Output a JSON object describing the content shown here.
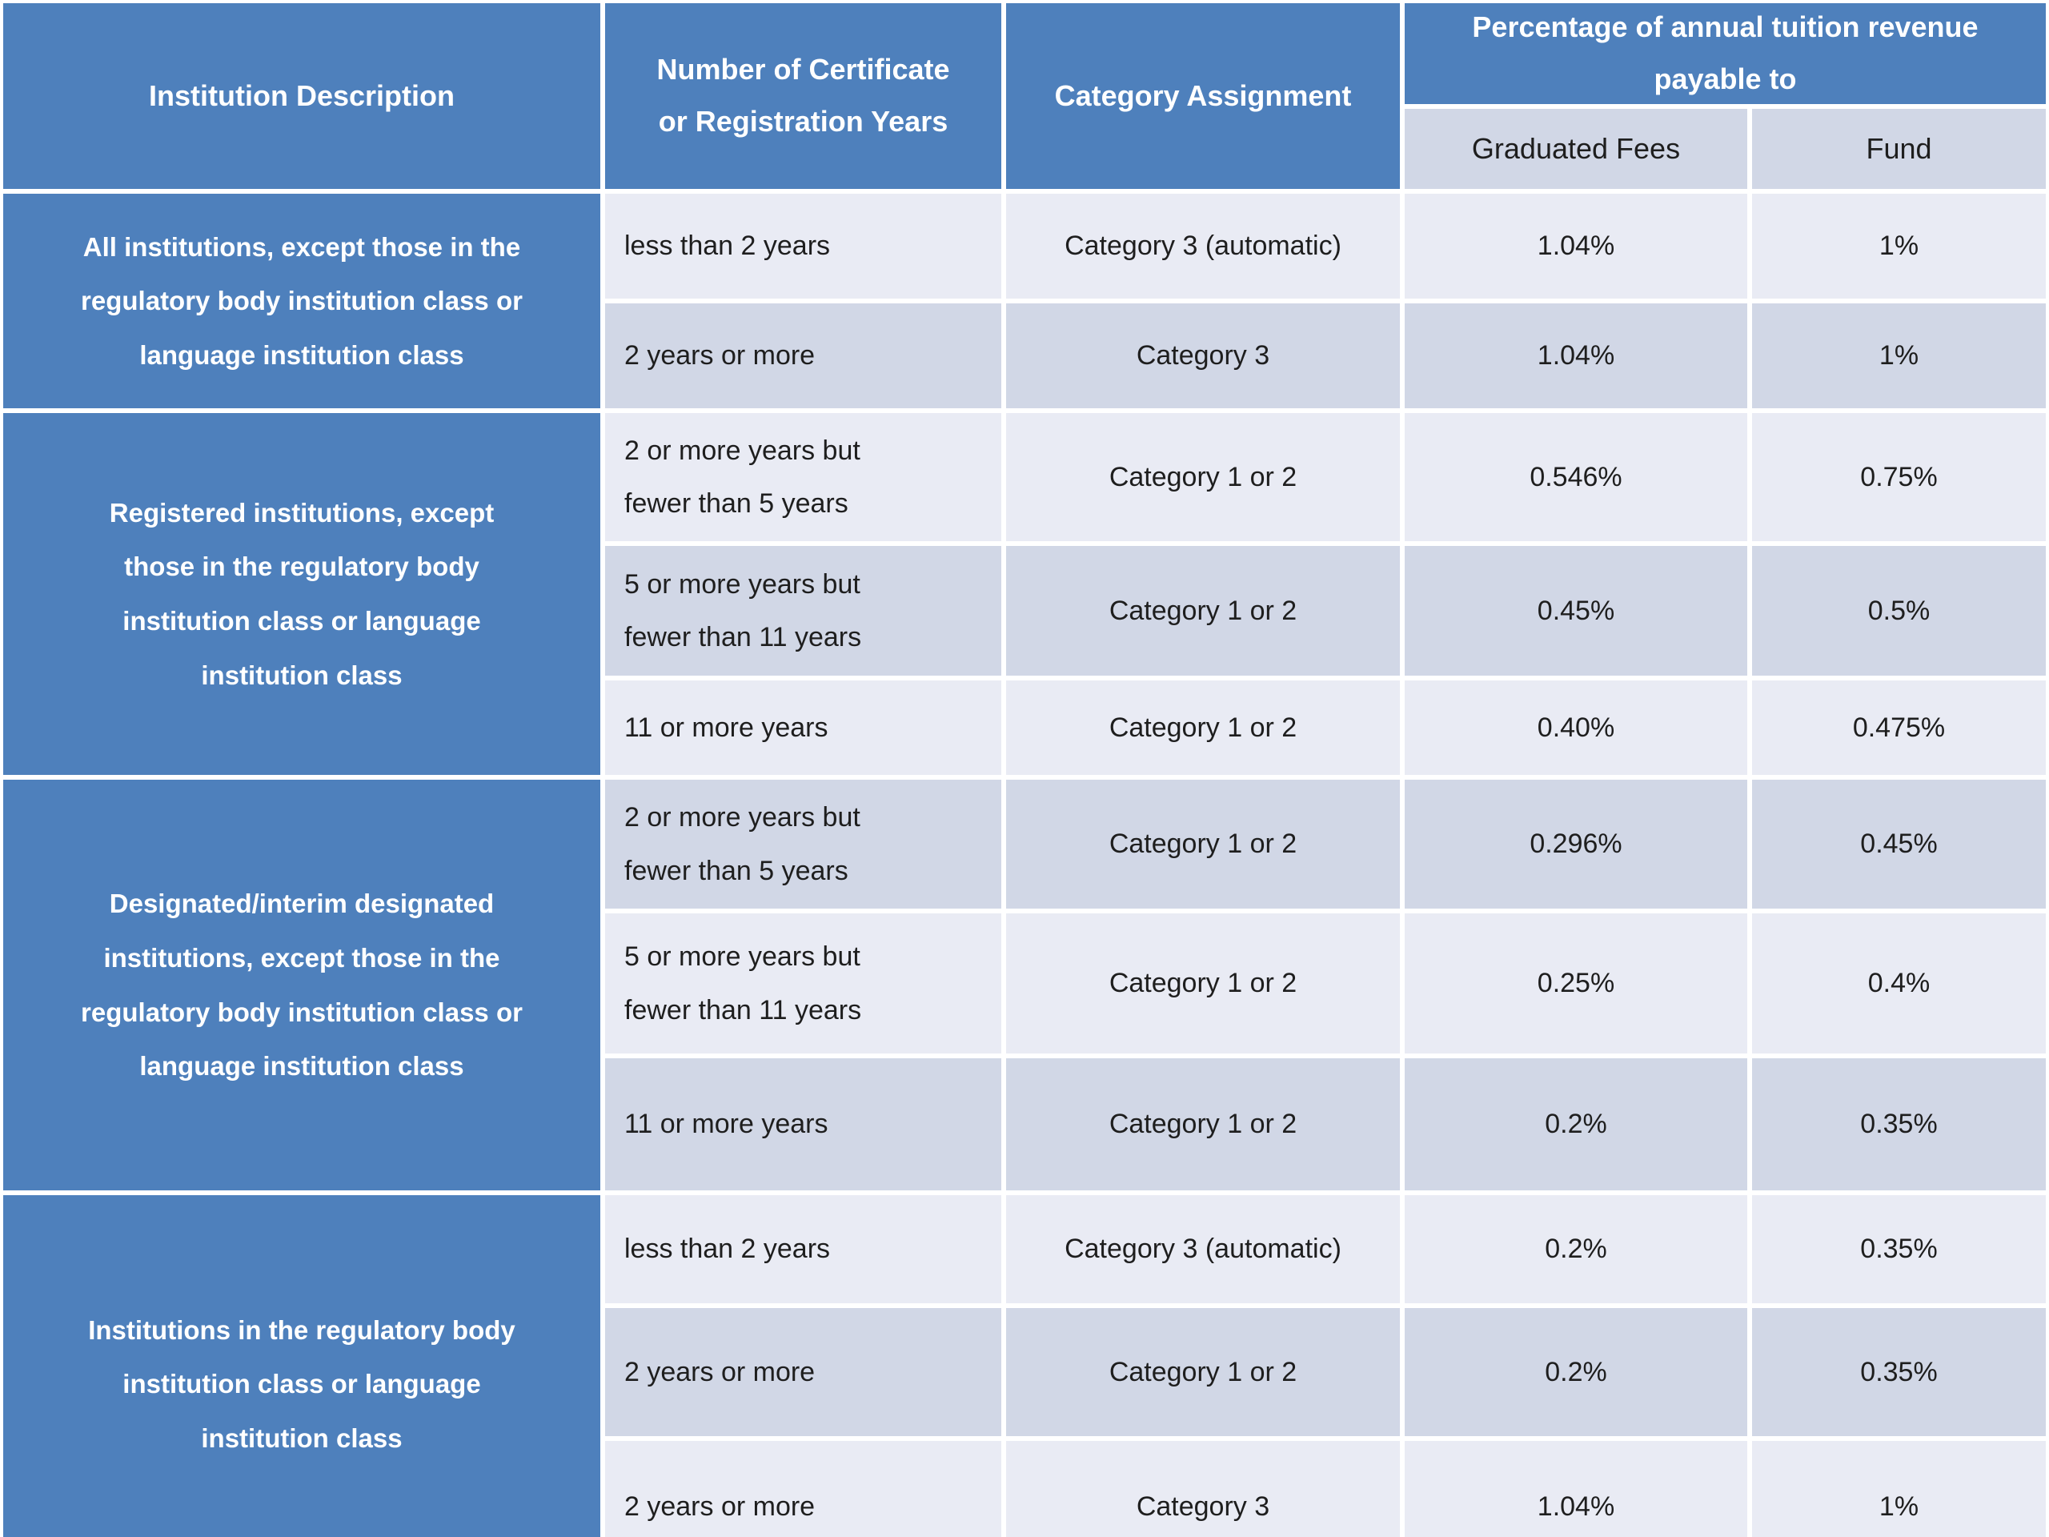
{
  "table": {
    "header": {
      "col_institution": "Institution Description",
      "col_years": "Number of Certificate\nor Registration Years",
      "col_category": "Category Assignment",
      "col_pct": "Percentage of annual tuition revenue\npayable to",
      "sub_graduated": "Graduated Fees",
      "sub_fund": "Fund"
    },
    "groups": [
      {
        "institution": "All institutions, except those in the\nregulatory body institution class or\nlanguage institution class",
        "rows": [
          {
            "years": "less than 2 years",
            "category": "Category 3 (automatic)",
            "graduated_fees": "1.04%",
            "fund": "1%"
          },
          {
            "years": "2 years or more",
            "category": "Category 3",
            "graduated_fees": "1.04%",
            "fund": "1%"
          }
        ]
      },
      {
        "institution": "Registered institutions, except\nthose in the regulatory body\ninstitution class or language\ninstitution class",
        "rows": [
          {
            "years": "2 or more years but\nfewer than 5 years",
            "category": "Category 1 or 2",
            "graduated_fees": "0.546%",
            "fund": "0.75%"
          },
          {
            "years": "5 or more years but\nfewer than 11 years",
            "category": "Category 1 or 2",
            "graduated_fees": "0.45%",
            "fund": "0.5%"
          },
          {
            "years": "11 or more years",
            "category": "Category 1 or 2",
            "graduated_fees": "0.40%",
            "fund": "0.475%"
          }
        ]
      },
      {
        "institution": "Designated/interim designated\ninstitutions, except those in the\nregulatory body institution class or\nlanguage institution class",
        "rows": [
          {
            "years": "2 or more years but\nfewer than 5 years",
            "category": "Category 1 or 2",
            "graduated_fees": "0.296%",
            "fund": "0.45%"
          },
          {
            "years": "5 or more years but\nfewer than 11 years",
            "category": "Category 1 or 2",
            "graduated_fees": "0.25%",
            "fund": "0.4%"
          },
          {
            "years": "11 or more years",
            "category": "Category 1 or 2",
            "graduated_fees": "0.2%",
            "fund": "0.35%"
          }
        ]
      },
      {
        "institution": "Institutions in the regulatory body\ninstitution class or language\ninstitution class",
        "rows": [
          {
            "years": "less than 2 years",
            "category": "Category 3 (automatic)",
            "graduated_fees": "0.2%",
            "fund": "0.35%"
          },
          {
            "years": "2 years or more",
            "category": "Category 1 or 2",
            "graduated_fees": "0.2%",
            "fund": "0.35%"
          },
          {
            "years": "2 years or more",
            "category": "Category 3",
            "graduated_fees": "1.04%",
            "fund": "1%"
          }
        ]
      }
    ],
    "colors": {
      "header_blue": "#4e80bc",
      "row_light": "#e9ebf4",
      "row_dark": "#d1d7e6",
      "border_white": "#ffffff",
      "text_dark": "#1e1e1e",
      "text_white": "#ffffff"
    }
  }
}
